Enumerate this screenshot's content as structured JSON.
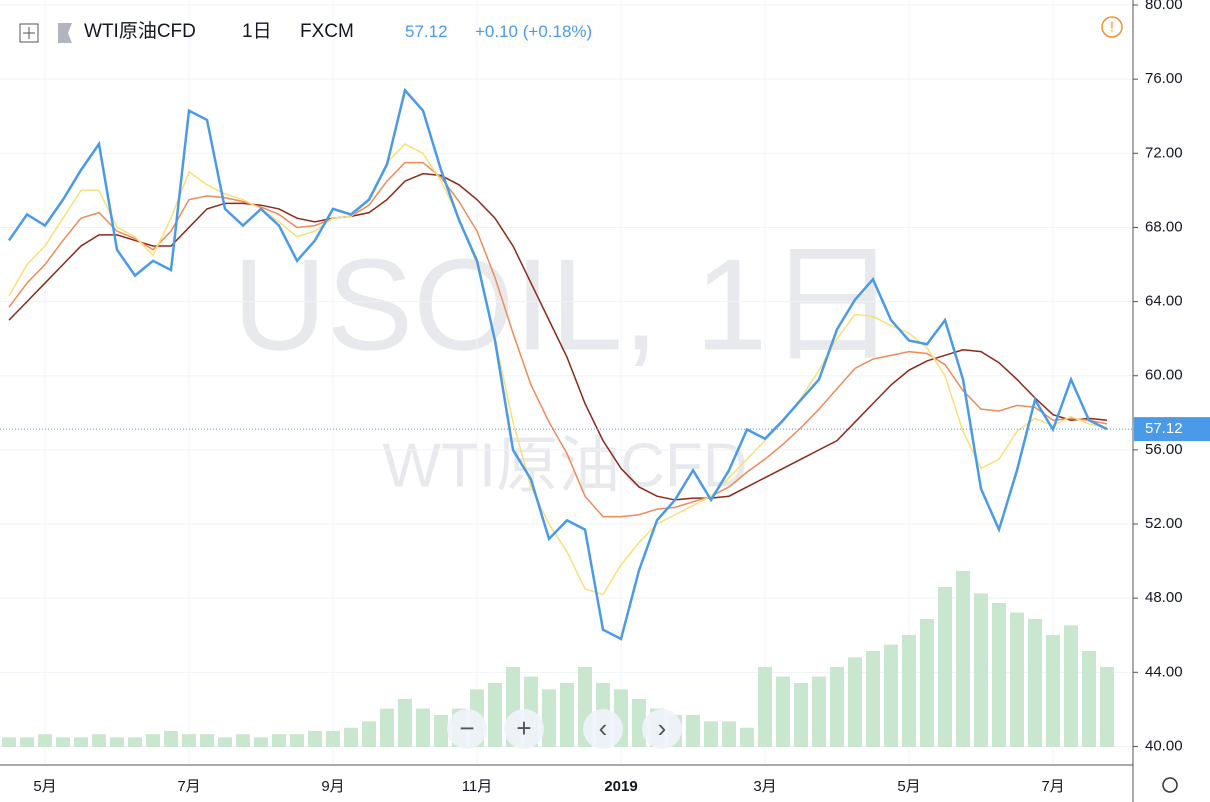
{
  "header": {
    "symbol": "WTI原油CFD",
    "interval": "1日",
    "source": "FXCM",
    "price": "57.12",
    "change": "+0.10 (+0.18%)"
  },
  "watermark": {
    "line1": "USOIL, 1日",
    "line2": "WTI原油CFD"
  },
  "chart_data": {
    "type": "line",
    "categories": [
      null,
      null,
      "5月",
      null,
      null,
      null,
      null,
      null,
      null,
      null,
      "7月",
      null,
      null,
      null,
      null,
      null,
      null,
      null,
      "9月",
      null,
      null,
      null,
      null,
      null,
      null,
      null,
      "11月",
      null,
      null,
      null,
      null,
      null,
      null,
      null,
      "2019",
      null,
      null,
      null,
      null,
      null,
      null,
      null,
      "3月",
      null,
      null,
      null,
      null,
      null,
      null,
      null,
      "5月",
      null,
      null,
      null,
      null,
      null,
      null,
      null,
      "7月",
      null,
      null,
      null
    ],
    "series": [
      {
        "color": "#4a9ae8",
        "values": [
          67.3,
          68.7,
          68.1,
          69.5,
          71.1,
          72.5,
          66.8,
          65.4,
          66.2,
          65.7,
          74.3,
          73.8,
          69.0,
          68.1,
          69.0,
          68.1,
          66.2,
          67.3,
          69.0,
          68.7,
          69.5,
          71.4,
          75.4,
          74.3,
          71.1,
          68.4,
          66.2,
          61.9,
          56.0,
          54.4,
          51.2,
          52.2,
          51.7,
          46.3,
          45.8,
          49.5,
          52.2,
          53.3,
          54.9,
          53.3,
          54.9,
          57.1,
          56.6,
          57.6,
          58.7,
          59.8,
          62.5,
          64.1,
          65.2,
          63.0,
          61.9,
          61.7,
          63.0,
          59.8,
          53.9,
          51.7,
          54.9,
          58.7,
          57.1,
          59.8,
          57.6,
          57.12
        ]
      },
      {
        "color": "#f7e07a",
        "values": [
          64.3,
          66.0,
          67.0,
          68.5,
          70.0,
          70.0,
          68.0,
          67.5,
          66.5,
          68.5,
          71.0,
          70.3,
          69.8,
          69.5,
          69.0,
          68.3,
          67.5,
          67.8,
          68.5,
          68.6,
          69.5,
          71.5,
          72.5,
          72.0,
          70.5,
          68.5,
          66.0,
          62.0,
          57.5,
          54.0,
          52.0,
          50.5,
          48.5,
          48.2,
          49.8,
          51.0,
          52.0,
          52.5,
          53.0,
          53.5,
          54.5,
          55.5,
          56.5,
          57.5,
          58.8,
          60.3,
          62.0,
          63.3,
          63.2,
          62.7,
          62.3,
          61.5,
          60.0,
          57.0,
          55.0,
          55.5,
          57.0,
          57.7,
          57.3,
          57.8,
          57.4,
          57.2
        ]
      },
      {
        "color": "#ee8a5a",
        "values": [
          63.7,
          65.0,
          66.0,
          67.3,
          68.5,
          68.8,
          67.8,
          67.4,
          66.8,
          67.8,
          69.5,
          69.7,
          69.6,
          69.4,
          69.1,
          68.7,
          68.0,
          68.1,
          68.5,
          68.6,
          69.2,
          70.5,
          71.5,
          71.5,
          70.7,
          69.4,
          67.8,
          65.3,
          62.3,
          59.5,
          57.5,
          55.8,
          53.5,
          52.4,
          52.4,
          52.5,
          52.8,
          52.9,
          53.2,
          53.5,
          54.0,
          54.8,
          55.5,
          56.3,
          57.2,
          58.2,
          59.3,
          60.4,
          60.9,
          61.1,
          61.3,
          61.2,
          60.6,
          59.2,
          58.2,
          58.1,
          58.4,
          58.3,
          57.6,
          57.7,
          57.6,
          57.4
        ]
      },
      {
        "color": "#8b2a1a",
        "values": [
          63.0,
          64.0,
          65.0,
          66.0,
          67.0,
          67.6,
          67.6,
          67.3,
          67.0,
          67.0,
          68.0,
          69.0,
          69.3,
          69.3,
          69.2,
          69.0,
          68.5,
          68.3,
          68.5,
          68.6,
          68.8,
          69.5,
          70.5,
          70.9,
          70.8,
          70.3,
          69.5,
          68.5,
          67.0,
          65.0,
          63.0,
          61.0,
          58.5,
          56.5,
          55.0,
          54.0,
          53.5,
          53.3,
          53.4,
          53.4,
          53.5,
          54.0,
          54.5,
          55.0,
          55.5,
          56.0,
          56.5,
          57.5,
          58.5,
          59.5,
          60.3,
          60.8,
          61.1,
          61.4,
          61.3,
          60.7,
          59.8,
          58.8,
          57.9,
          57.6,
          57.7,
          57.6
        ]
      }
    ],
    "volume": [
      3,
      3,
      4,
      3,
      3,
      4,
      3,
      3,
      4,
      5,
      4,
      4,
      3,
      4,
      3,
      4,
      4,
      5,
      5,
      6,
      8,
      12,
      15,
      12,
      10,
      12,
      18,
      20,
      25,
      22,
      18,
      20,
      25,
      20,
      18,
      15,
      12,
      10,
      10,
      8,
      8,
      6,
      25,
      22,
      20,
      22,
      25,
      28,
      30,
      32,
      35,
      40,
      50,
      55,
      48,
      45,
      42,
      40,
      35,
      38,
      30,
      25
    ],
    "volume_color": "#c9e6cf",
    "vlim": [
      0,
      100
    ],
    "last_price": 57.12,
    "last_price_label": "57.12",
    "ylim": [
      39,
      80.27
    ],
    "yticks": [
      {
        "value": 40,
        "label": "40.00"
      },
      {
        "value": 44,
        "label": "44.00"
      },
      {
        "value": 48,
        "label": "48.00"
      },
      {
        "value": 52,
        "label": "52.00"
      },
      {
        "value": 56,
        "label": "56.00"
      },
      {
        "value": 60,
        "label": "60.00"
      },
      {
        "value": 64,
        "label": "64.00"
      },
      {
        "value": 68,
        "label": "68.00"
      },
      {
        "value": 72,
        "label": "72.00"
      },
      {
        "value": 76,
        "label": "76.00"
      },
      {
        "value": 80,
        "label": "80.00"
      }
    ],
    "grid": true
  }
}
